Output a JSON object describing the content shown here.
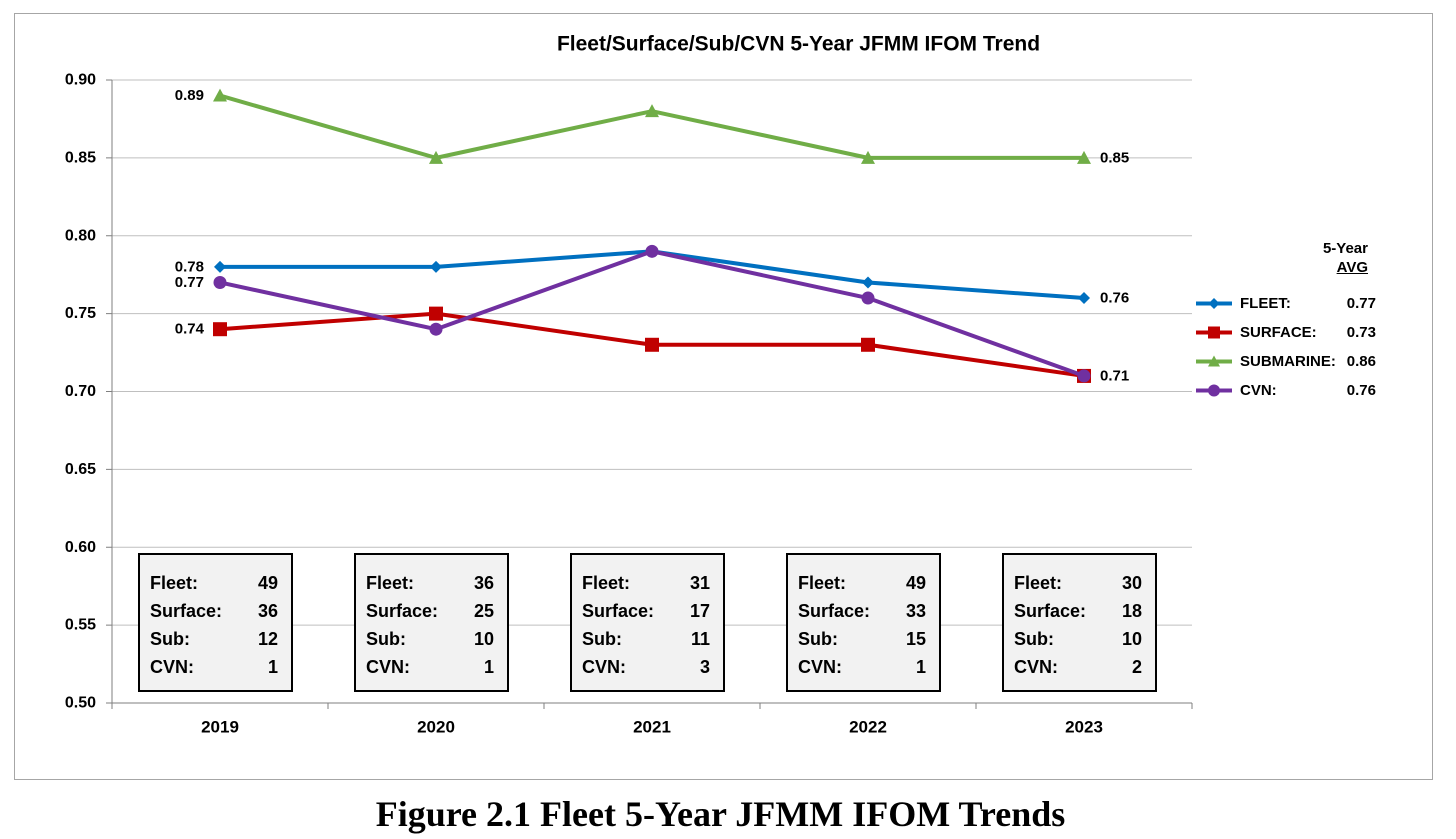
{
  "chart_data": {
    "type": "line",
    "title": "Fleet/Surface/Sub/CVN 5-Year JFMM IFOM Trend",
    "categories": [
      "2019",
      "2020",
      "2021",
      "2022",
      "2023"
    ],
    "ylim": [
      0.5,
      0.9
    ],
    "yticks": [
      "0.50",
      "0.55",
      "0.60",
      "0.65",
      "0.70",
      "0.75",
      "0.80",
      "0.85",
      "0.90"
    ],
    "grid": true,
    "legend_position": "right",
    "series": [
      {
        "name": "FLEET:",
        "values": [
          0.78,
          0.78,
          0.79,
          0.77,
          0.76
        ],
        "color": "#0070c0",
        "marker": "diamond",
        "avg": "0.77",
        "start_label": "0.78",
        "end_label": "0.76"
      },
      {
        "name": "SURFACE:",
        "values": [
          0.74,
          0.75,
          0.73,
          0.73,
          0.71
        ],
        "color": "#c00000",
        "marker": "square",
        "avg": "0.73",
        "start_label": "0.74",
        "end_label": "0.71"
      },
      {
        "name": "SUBMARINE:",
        "values": [
          0.89,
          0.85,
          0.88,
          0.85,
          0.85
        ],
        "color": "#70ad47",
        "marker": "triangle",
        "avg": "0.86",
        "start_label": "0.89",
        "end_label": "0.85"
      },
      {
        "name": "CVN:",
        "values": [
          0.77,
          0.74,
          0.79,
          0.76,
          0.71
        ],
        "color": "#7030a0",
        "marker": "circle",
        "avg": "0.76",
        "start_label": "0.77",
        "end_label": ""
      }
    ],
    "legend_header": {
      "line1": "5-Year",
      "line2": "AVG"
    },
    "count_boxes": [
      {
        "year": "2019",
        "rows": [
          {
            "label": "Fleet:",
            "value": "49"
          },
          {
            "label": "Surface:",
            "value": "36"
          },
          {
            "label": "Sub:",
            "value": "12"
          },
          {
            "label": "CVN:",
            "value": "1"
          }
        ]
      },
      {
        "year": "2020",
        "rows": [
          {
            "label": "Fleet:",
            "value": "36"
          },
          {
            "label": "Surface:",
            "value": "25"
          },
          {
            "label": "Sub:",
            "value": "10"
          },
          {
            "label": "CVN:",
            "value": "1"
          }
        ]
      },
      {
        "year": "2021",
        "rows": [
          {
            "label": "Fleet:",
            "value": "31"
          },
          {
            "label": "Surface:",
            "value": "17"
          },
          {
            "label": "Sub:",
            "value": "11"
          },
          {
            "label": "CVN:",
            "value": "3"
          }
        ]
      },
      {
        "year": "2022",
        "rows": [
          {
            "label": "Fleet:",
            "value": "49"
          },
          {
            "label": "Surface:",
            "value": "33"
          },
          {
            "label": "Sub:",
            "value": "15"
          },
          {
            "label": "CVN:",
            "value": "1"
          }
        ]
      },
      {
        "year": "2023",
        "rows": [
          {
            "label": "Fleet:",
            "value": "30"
          },
          {
            "label": "Surface:",
            "value": "18"
          },
          {
            "label": "Sub:",
            "value": "10"
          },
          {
            "label": "CVN:",
            "value": "2"
          }
        ]
      }
    ]
  },
  "caption": "Figure 2.1 Fleet 5-Year JFMM IFOM Trends"
}
